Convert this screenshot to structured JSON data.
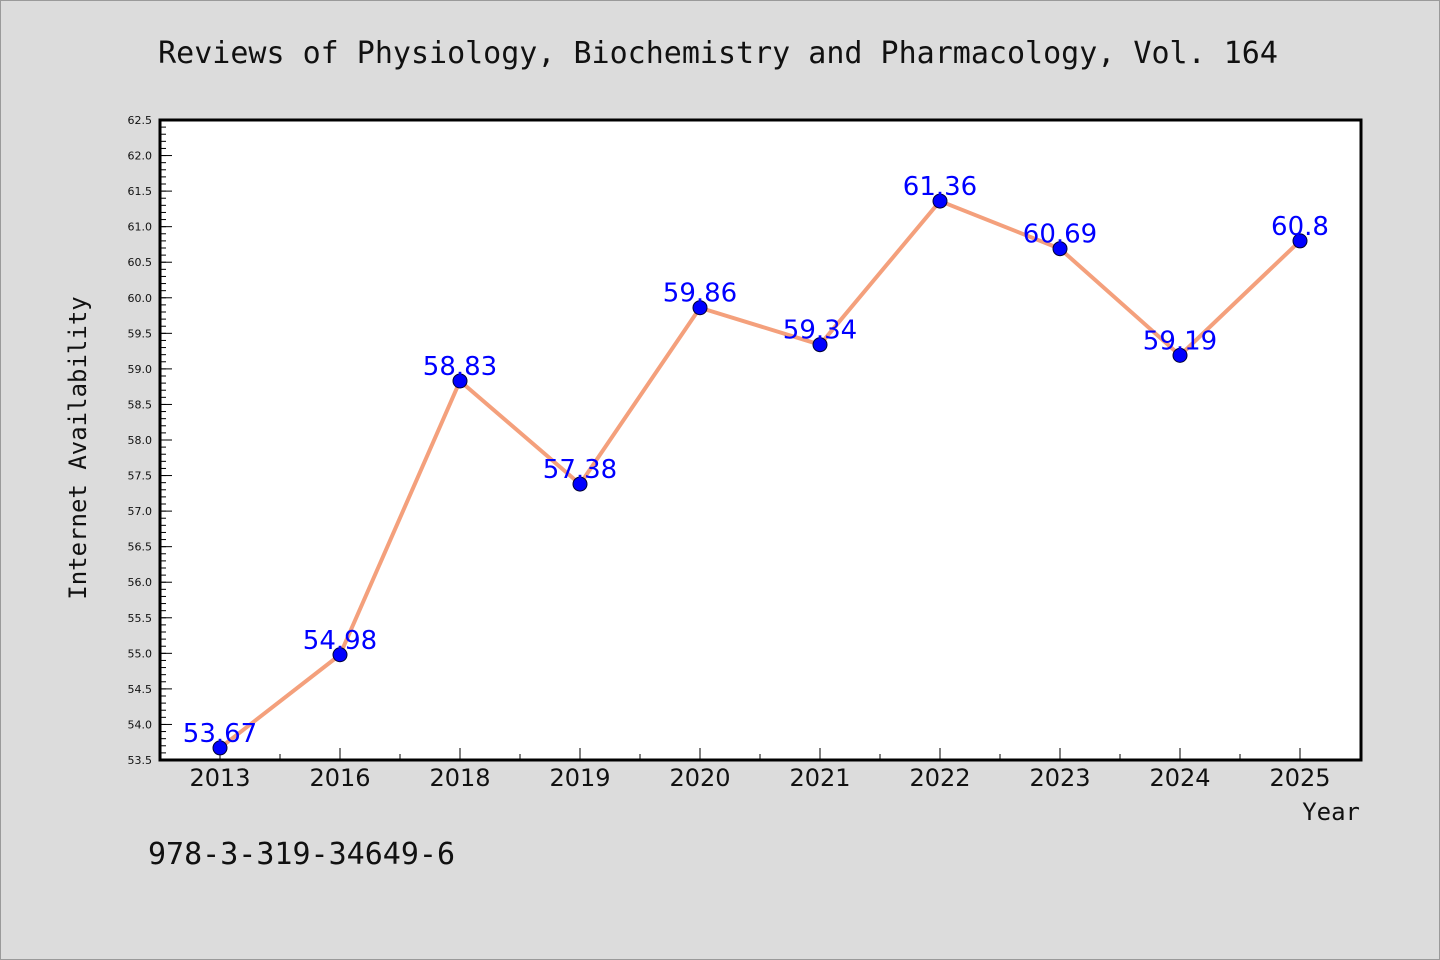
{
  "chart_data": {
    "type": "line",
    "title": "Reviews of Physiology, Biochemistry and Pharmacology, Vol. 164",
    "xlabel": "Year",
    "ylabel": "Internet Availability",
    "categories": [
      "2013",
      "2016",
      "2018",
      "2019",
      "2020",
      "2021",
      "2022",
      "2023",
      "2024",
      "2025"
    ],
    "series": [
      {
        "values": [
          53.67,
          54.98,
          58.83,
          57.38,
          59.86,
          59.34,
          61.36,
          60.69,
          59.19,
          60.8
        ],
        "data_labels": [
          "53.67",
          "54.98",
          "58.83",
          "57.38",
          "59.86",
          "59.34",
          "61.36",
          "60.69",
          "59.19",
          "60.8"
        ]
      }
    ],
    "ylim": [
      53.5,
      62.5
    ],
    "yticks": [
      "53.5",
      "54.0",
      "54.5",
      "55.0",
      "55.5",
      "56.0",
      "56.5",
      "57.0",
      "57.5",
      "58.0",
      "58.5",
      "59.0",
      "59.5",
      "60.0",
      "60.5",
      "61.0",
      "61.5",
      "62.0",
      "62.5"
    ],
    "grid": false,
    "legend": "none",
    "colors": {
      "line": "#f4a07c",
      "marker": "#0000ff",
      "data_label": "#0000ff",
      "background": "#dcdcdc",
      "plot_area": "#ffffff"
    }
  },
  "footer": {
    "isbn": "978-3-319-34649-6"
  }
}
